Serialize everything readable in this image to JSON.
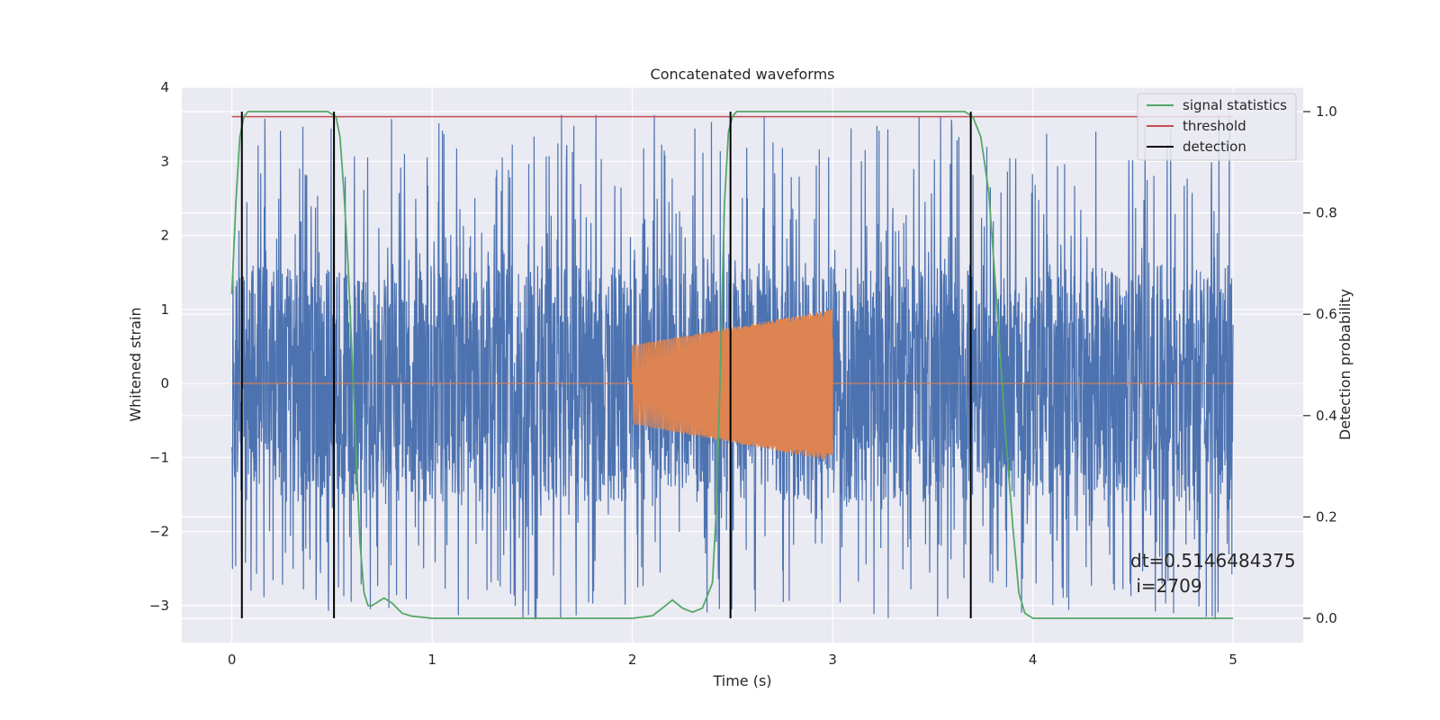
{
  "chart_data": {
    "type": "line",
    "title": "Concatenated waveforms",
    "xlabel": "Time (s)",
    "ylabel": "Whitened strain",
    "y2label": "Detection probability",
    "xlim": [
      -0.25,
      5.35
    ],
    "ylim": [
      -3.5,
      4.0
    ],
    "y2lim": [
      -0.048,
      1.048
    ],
    "xticks": [
      "0",
      "1",
      "2",
      "3",
      "4",
      "5"
    ],
    "xtick_values": [
      0,
      1,
      2,
      3,
      4,
      5
    ],
    "yticks": [
      "4",
      "3",
      "2",
      "1",
      "0",
      "−1",
      "−2",
      "−3"
    ],
    "ytick_values": [
      4,
      3,
      2,
      1,
      0,
      -1,
      -2,
      -3
    ],
    "y2ticks": [
      "1.0",
      "0.8",
      "0.6",
      "0.4",
      "0.2",
      "0.0"
    ],
    "y2tick_values": [
      1.0,
      0.8,
      0.6,
      0.4,
      0.2,
      0.0
    ],
    "grid": true,
    "legend_position": "top-right",
    "colors": {
      "noise": "#4c72b0",
      "waveform": "#dd8452",
      "signal_statistics": "#55a868",
      "threshold": "#c44e52",
      "detection": "#000000",
      "background": "#eaeaf2"
    },
    "series": [
      {
        "name": "signal statistics",
        "axis": "right",
        "color": "#55a868",
        "x": [
          0.0,
          0.02,
          0.04,
          0.06,
          0.08,
          0.12,
          0.2,
          0.3,
          0.4,
          0.48,
          0.52,
          0.54,
          0.56,
          0.58,
          0.6,
          0.62,
          0.64,
          0.66,
          0.68,
          0.7,
          0.72,
          0.76,
          0.8,
          0.85,
          0.9,
          1.0,
          1.2,
          1.5,
          1.8,
          2.0,
          2.1,
          2.15,
          2.2,
          2.25,
          2.3,
          2.35,
          2.4,
          2.42,
          2.44,
          2.46,
          2.48,
          2.5,
          2.52,
          2.55,
          2.6,
          2.8,
          3.0,
          3.3,
          3.6,
          3.66,
          3.7,
          3.74,
          3.78,
          3.82,
          3.86,
          3.9,
          3.93,
          3.96,
          4.0,
          4.5,
          5.0
        ],
        "y": [
          0.64,
          0.82,
          0.95,
          0.99,
          1.0,
          1.0,
          1.0,
          1.0,
          1.0,
          1.0,
          0.99,
          0.95,
          0.84,
          0.7,
          0.52,
          0.33,
          0.15,
          0.05,
          0.025,
          0.025,
          0.03,
          0.04,
          0.03,
          0.01,
          0.004,
          0.0,
          0.0,
          0.0,
          0.0,
          0.0,
          0.005,
          0.02,
          0.036,
          0.02,
          0.012,
          0.02,
          0.07,
          0.22,
          0.5,
          0.82,
          0.96,
          0.99,
          1.0,
          1.0,
          1.0,
          1.0,
          1.0,
          1.0,
          1.0,
          1.0,
          0.99,
          0.95,
          0.84,
          0.62,
          0.38,
          0.18,
          0.05,
          0.01,
          0.0,
          0.0,
          0.0
        ]
      },
      {
        "name": "threshold",
        "axis": "right",
        "color": "#c44e52",
        "x": [
          0.0,
          5.0
        ],
        "y": [
          0.99,
          0.99
        ]
      },
      {
        "name": "detection",
        "axis": "right",
        "color": "#000000",
        "segments_x": [
          0.05,
          0.51,
          2.49,
          3.69
        ],
        "ymin": 0.0,
        "ymax": 1.0
      }
    ],
    "noise": {
      "color": "#4c72b0",
      "x_range": [
        0.0,
        5.0
      ],
      "core_amplitude": 0.9,
      "max_amplitude": 3.65,
      "min_amplitude": -3.2
    },
    "waveform": {
      "color": "#dd8452",
      "x_range": [
        0.0,
        5.0
      ],
      "chirp_start": 2.0,
      "chirp_end": 3.0,
      "start_envelope": [
        0.52,
        -0.55
      ],
      "end_envelope": [
        1.0,
        -1.05
      ]
    },
    "annotations": [
      "dt=0.5146484375",
      " i=2709"
    ]
  }
}
